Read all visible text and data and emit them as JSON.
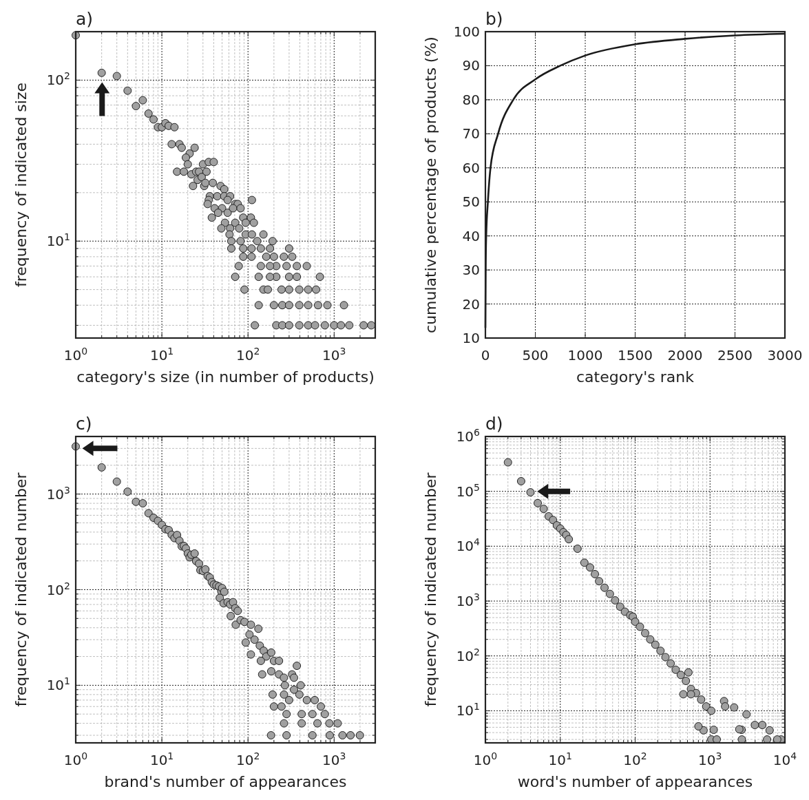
{
  "chart_data": [
    {
      "type": "scatter",
      "title": "a)",
      "xlabel": "category's size (in number of products)",
      "ylabel": "frequency of indicated size",
      "log": "xy",
      "grid": true,
      "marker": "circle",
      "xlim": [
        1,
        3000
      ],
      "ylim": [
        2.5,
        200
      ],
      "xticks": [
        {
          "value": 1,
          "label": "10$^{0}$"
        },
        {
          "value": 10,
          "label": "10$^{1}$"
        },
        {
          "value": 100,
          "label": "10$^{2}$"
        },
        {
          "value": 1000,
          "label": "10$^{3}$"
        }
      ],
      "yticks": [
        {
          "value": 10,
          "label": "10$^{1}$"
        },
        {
          "value": 100,
          "label": "10$^{2}$"
        }
      ],
      "series": [
        {
          "color": "#a0a0a0",
          "x": [
            1,
            2,
            3,
            4,
            5,
            6,
            7,
            8,
            9,
            10,
            11,
            12,
            14,
            13,
            16,
            17,
            24,
            21,
            19,
            20,
            15,
            18,
            22,
            23,
            25,
            27,
            26,
            29,
            33,
            30,
            35,
            40,
            31,
            32,
            39,
            48,
            53,
            36,
            44,
            53,
            62,
            35,
            58,
            34,
            41,
            50,
            71,
            76,
            111,
            45,
            58,
            67,
            82,
            38,
            88,
            108,
            54,
            71,
            94,
            117,
            49,
            62,
            79,
            61,
            94,
            111,
            151,
            64,
            82,
            128,
            193,
            64,
            88,
            141,
            300,
            88,
            163,
            261,
            326,
            78,
            141,
            213,
            369,
            481,
            71,
            133,
            213,
            369,
            683,
            91,
            151,
            245,
            394,
            617,
            133,
            200,
            394,
            835,
            1300,
            120,
            213,
            394,
            780,
            1500,
            2200,
            2700,
            250,
            300,
            500,
            650,
            250,
            300,
            500,
            600,
            1000,
            1200,
            170,
            300,
            500,
            180,
            300,
            180,
            280,
            110,
            200,
            110,
            180
          ],
          "values": [
            190,
            111,
            106,
            86,
            69,
            75,
            62,
            57,
            51,
            51,
            54,
            52,
            51,
            40,
            40,
            38,
            38,
            35,
            33,
            30,
            27,
            27,
            26,
            22,
            27,
            27,
            24,
            25,
            27,
            30,
            31,
            31,
            22,
            23,
            23,
            22,
            21,
            19,
            19,
            19,
            19,
            18,
            18,
            17,
            16,
            16,
            17,
            17,
            18,
            15,
            15,
            16,
            16,
            14,
            14,
            14,
            13,
            13,
            13,
            13,
            12,
            12,
            12,
            11,
            11,
            11,
            11,
            10,
            10,
            10,
            10,
            9,
            9,
            9,
            9,
            8,
            8,
            8,
            8,
            7,
            7,
            7,
            7,
            7,
            6,
            6,
            6,
            6,
            6,
            5,
            5,
            5,
            5,
            5,
            4,
            4,
            4,
            4,
            4,
            3,
            3,
            3,
            3,
            3,
            3,
            3,
            4,
            4,
            4,
            4,
            3,
            3,
            3,
            3,
            3,
            3,
            5,
            5,
            5,
            6,
            6,
            7,
            7,
            8,
            8,
            9,
            9
          ]
        }
      ]
    },
    {
      "type": "line",
      "title": "b)",
      "xlabel": "category's rank",
      "ylabel": "cumulative percentage of products (%)",
      "grid": true,
      "xlim": [
        0,
        3000
      ],
      "ylim": [
        10,
        100
      ],
      "xticks": [
        0,
        500,
        1000,
        1500,
        2000,
        2500,
        3000
      ],
      "yticks": [
        10,
        20,
        30,
        40,
        50,
        60,
        70,
        80,
        90,
        100
      ],
      "series": [
        {
          "color": "#1a1a1a",
          "x": [
            0,
            3,
            8,
            25,
            51,
            127,
            279,
            500,
            750,
            1000,
            1500,
            2000,
            2500,
            3000
          ],
          "values": [
            13,
            30,
            40,
            50,
            60,
            70,
            80,
            86,
            90,
            93,
            96.3,
            97.9,
            98.9,
            99.4
          ]
        }
      ]
    },
    {
      "type": "scatter",
      "title": "c)",
      "xlabel": "brand's number of appearances",
      "ylabel": "frequency of indicated number",
      "log": "xy",
      "grid": true,
      "marker": "circle",
      "xlim": [
        1,
        3000
      ],
      "ylim": [
        2.5,
        4000
      ],
      "xticks": [
        {
          "value": 1,
          "label": "10$^{0}$"
        },
        {
          "value": 10,
          "label": "10$^{1}$"
        },
        {
          "value": 100,
          "label": "10$^{2}$"
        },
        {
          "value": 1000,
          "label": "10$^{3}$"
        }
      ],
      "yticks": [
        {
          "value": 10,
          "label": "10$^{1}$"
        },
        {
          "value": 100,
          "label": "10$^{2}$"
        },
        {
          "value": 1000,
          "label": "10$^{3}$"
        }
      ],
      "series": [
        {
          "color": "#a0a0a0",
          "x": [
            1,
            2,
            3,
            4,
            5,
            6,
            7,
            8,
            9,
            10,
            11,
            12,
            13,
            14,
            15,
            16,
            17,
            18,
            19,
            20,
            21,
            22,
            24,
            25,
            27,
            28,
            30,
            32,
            34,
            36,
            38,
            40,
            43,
            46,
            49,
            50,
            53,
            47,
            52,
            58,
            62,
            67,
            71,
            63,
            76,
            72,
            82,
            91,
            94,
            108,
            104,
            108,
            132,
            119,
            137,
            152,
            163,
            141,
            146,
            186,
            200,
            229,
            186,
            229,
            261,
            369,
            325,
            342,
            409,
            268,
            193,
            200,
            595,
            701,
            780,
            880,
            1100,
            1250,
            1550,
            1990,
            185,
            262,
            280,
            245,
            300,
            482,
            395,
            262,
            342,
            420,
            560,
            420,
            640,
            280,
            560,
            890
          ],
          "values": [
            3150,
            1900,
            1350,
            1060,
            830,
            800,
            630,
            565,
            525,
            476,
            429,
            420,
            375,
            346,
            373,
            325,
            284,
            287,
            270,
            239,
            218,
            232,
            239,
            199,
            187,
            160,
            157,
            163,
            139,
            134,
            120,
            113,
            111,
            108,
            96,
            104,
            95,
            82,
            72,
            74,
            70,
            74,
            64,
            53,
            60,
            43,
            48,
            46,
            28,
            43,
            34,
            21,
            39,
            30,
            26,
            23,
            20,
            18,
            13,
            22,
            18,
            18,
            14,
            13,
            12,
            16,
            13,
            12,
            10,
            10,
            8,
            6,
            7,
            6,
            5,
            4,
            4,
            3,
            3,
            3,
            3,
            4,
            5,
            6,
            7,
            7,
            8,
            8,
            9,
            5,
            5,
            4,
            4,
            3,
            3,
            3
          ]
        }
      ]
    },
    {
      "type": "scatter",
      "title": "d)",
      "xlabel": "word's number of appearances",
      "ylabel": "frequency of indicated number",
      "log": "xy",
      "grid": true,
      "marker": "circle",
      "xlim": [
        1,
        10000
      ],
      "ylim": [
        2.6,
        1000000
      ],
      "xticks": [
        {
          "value": 1,
          "label": "10$^{0}$"
        },
        {
          "value": 10,
          "label": "10$^{1}$"
        },
        {
          "value": 100,
          "label": "10$^{2}$"
        },
        {
          "value": 1000,
          "label": "10$^{3}$"
        },
        {
          "value": 10000,
          "label": "10$^{4}$"
        }
      ],
      "yticks": [
        {
          "value": 10,
          "label": "10$^{1}$"
        },
        {
          "value": 100,
          "label": "10$^{2}$"
        },
        {
          "value": 1000,
          "label": "10$^{3}$"
        },
        {
          "value": 10000,
          "label": "10$^{4}$"
        },
        {
          "value": 100000,
          "label": "10$^{5}$"
        },
        {
          "value": 1000000,
          "label": "10$^{6}$"
        }
      ],
      "series": [
        {
          "color": "#a0a0a0",
          "x": [
            2,
            3,
            4,
            5,
            6,
            7,
            8,
            9,
            10,
            11,
            12,
            13,
            17,
            21,
            25,
            29,
            33,
            39,
            46,
            54,
            63,
            73,
            86,
            93,
            100,
            116,
            136,
            159,
            186,
            218,
            254,
            298,
            348,
            407,
            476,
            556,
            650,
            761,
            889,
            1040,
            515,
            1540,
            2100,
            3070,
            4990,
            6250,
            8900,
            7900,
            3970,
            2640,
            1120,
            820,
            1040,
            440,
            556,
            700,
            1590,
            2460,
            5780,
            1230,
            2660
          ],
          "values": [
            338000,
            153000,
            96000,
            61000,
            48000,
            35000,
            30000,
            24000,
            21000,
            18000,
            16000,
            13400,
            9000,
            5000,
            4100,
            3100,
            2300,
            1750,
            1350,
            1030,
            790,
            640,
            550,
            520,
            420,
            340,
            260,
            200,
            160,
            124,
            95,
            73,
            56,
            45,
            35,
            25,
            21,
            16,
            12,
            10,
            50,
            15,
            11.5,
            8.6,
            5.5,
            4.4,
            3,
            3,
            5.5,
            4.5,
            4.5,
            4.4,
            3,
            20,
            20,
            5.2,
            12,
            4.6,
            3,
            3,
            3
          ]
        }
      ]
    }
  ]
}
